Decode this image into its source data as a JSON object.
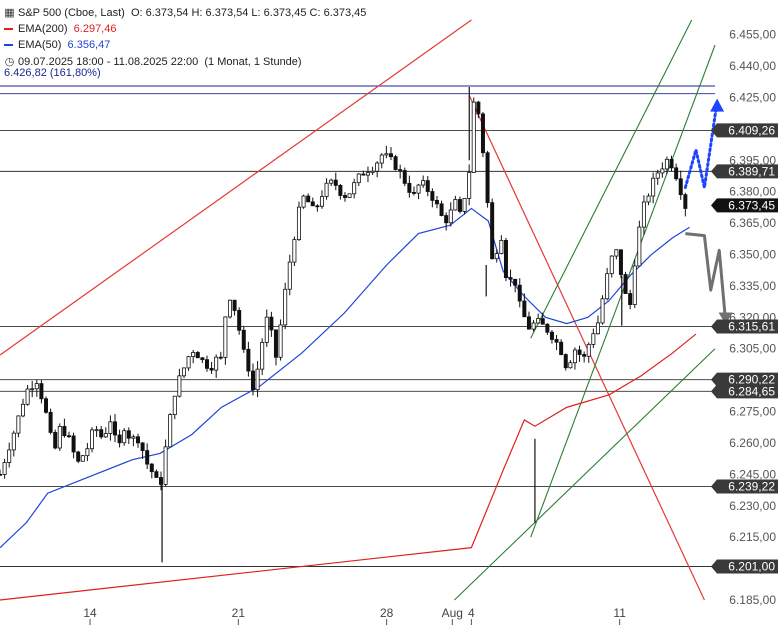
{
  "header": {
    "title": "S&P 500 (Cboe, Last)",
    "ohlc": "O: 6.373,54  H: 6.373,54  L: 6.373,45  C: 6.373,45",
    "ema200_label": "EMA(200)",
    "ema200_value": "6.297,46",
    "ema50_label": "EMA(50)",
    "ema50_value": "6.356,47",
    "range": "09.07.2025 18:00 - 11.08.2025 22:00",
    "interval": "(1 Monat, 1 Stunde)",
    "fib_label": "6.426,82 (161,80%)"
  },
  "colors": {
    "up": "#222222",
    "ema200": "#e02020",
    "ema50": "#1f44d6",
    "fib": "#1a2a8c",
    "channel": "#2e7d32",
    "red_line": "#e53935",
    "dotted": "#1f44ff",
    "grey_arrow": "#707070"
  },
  "chart_data": {
    "type": "candlestick",
    "title": "S&P 500 (Cboe, Last)",
    "ylim": [
      6185,
      6462
    ],
    "y_ticks": [
      "6.455,00",
      "6.440,00",
      "6.425,00",
      "6.410,00",
      "6.395,00",
      "6.380,00",
      "6.365,00",
      "6.350,00",
      "6.335,00",
      "6.320,00",
      "6.305,00",
      "6.290,00",
      "6.275,00",
      "6.260,00",
      "6.245,00",
      "6.230,00",
      "6.215,00",
      "6.200,00",
      "6.185,00"
    ],
    "y_tick_values": [
      6455,
      6440,
      6425,
      6410,
      6395,
      6380,
      6365,
      6350,
      6335,
      6320,
      6305,
      6290,
      6275,
      6260,
      6245,
      6230,
      6215,
      6200,
      6185
    ],
    "x_ticks": [
      "14",
      "21",
      "28",
      "Aug",
      "4",
      "11"
    ],
    "x_tick_values": [
      14,
      21,
      28,
      31.1,
      32,
      39
    ],
    "xlim": [
      9.75,
      43.5
    ],
    "levels": [
      {
        "label": "6.426,82",
        "value": 6426.82,
        "color": "#1a2a8c"
      },
      {
        "label": "6.409,26",
        "value": 6409.26,
        "color": "#333333"
      },
      {
        "label": "6.389,71",
        "value": 6389.71,
        "color": "#333333"
      },
      {
        "label": "6.373,45",
        "value": 6373.45,
        "color": "#111111"
      },
      {
        "label": "6.315,61",
        "value": 6315.61,
        "color": "#333333"
      },
      {
        "label": "6.290,22",
        "value": 6290.22,
        "color": "#333333"
      },
      {
        "label": "6.284,65",
        "value": 6284.65,
        "color": "#333333"
      },
      {
        "label": "6.239,22",
        "value": 6239.22,
        "color": "#333333"
      },
      {
        "label": "6.201,00",
        "value": 6201.0,
        "color": "#333333"
      }
    ],
    "price_path": [
      [
        9.75,
        6245
      ],
      [
        10.4,
        6265
      ],
      [
        11.0,
        6285
      ],
      [
        11.5,
        6290
      ],
      [
        11.9,
        6275
      ],
      [
        12.3,
        6255
      ],
      [
        12.6,
        6268
      ],
      [
        13.0,
        6262
      ],
      [
        13.4,
        6250
      ],
      [
        13.9,
        6258
      ],
      [
        14.2,
        6268
      ],
      [
        14.6,
        6262
      ],
      [
        15.0,
        6272
      ],
      [
        15.3,
        6255
      ],
      [
        15.6,
        6268
      ],
      [
        15.9,
        6262
      ],
      [
        16.3,
        6262
      ],
      [
        16.7,
        6250
      ],
      [
        17.0,
        6245
      ],
      [
        17.3,
        6238
      ],
      [
        17.6,
        6260
      ],
      [
        17.9,
        6280
      ],
      [
        18.1,
        6288
      ],
      [
        18.4,
        6295
      ],
      [
        18.8,
        6305
      ],
      [
        19.1,
        6302
      ],
      [
        19.4,
        6298
      ],
      [
        19.7,
        6296
      ],
      [
        19.9,
        6300
      ],
      [
        20.2,
        6300
      ],
      [
        20.4,
        6322
      ],
      [
        20.6,
        6330
      ],
      [
        20.9,
        6322
      ],
      [
        21.2,
        6305
      ],
      [
        21.5,
        6295
      ],
      [
        21.7,
        6285
      ],
      [
        22.0,
        6300
      ],
      [
        22.3,
        6320
      ],
      [
        22.5,
        6315
      ],
      [
        22.8,
        6300
      ],
      [
        23.1,
        6325
      ],
      [
        23.4,
        6345
      ],
      [
        23.7,
        6362
      ],
      [
        24.0,
        6378
      ],
      [
        24.3,
        6375
      ],
      [
        24.6,
        6370
      ],
      [
        24.9,
        6378
      ],
      [
        25.2,
        6383
      ],
      [
        25.5,
        6385
      ],
      [
        25.8,
        6380
      ],
      [
        26.0,
        6378
      ],
      [
        26.3,
        6380
      ],
      [
        26.6,
        6386
      ],
      [
        27.0,
        6390
      ],
      [
        27.4,
        6392
      ],
      [
        27.8,
        6398
      ],
      [
        28.2,
        6395
      ],
      [
        28.6,
        6390
      ],
      [
        29.0,
        6382
      ],
      [
        29.3,
        6378
      ],
      [
        29.6,
        6385
      ],
      [
        30.0,
        6380
      ],
      [
        30.3,
        6375
      ],
      [
        30.6,
        6368
      ],
      [
        30.9,
        6366
      ],
      [
        31.2,
        6376
      ],
      [
        31.5,
        6368
      ],
      [
        31.9,
        6390
      ],
      [
        32.0,
        6415
      ],
      [
        32.2,
        6428
      ],
      [
        32.6,
        6395
      ],
      [
        33.0,
        6345
      ],
      [
        33.4,
        6360
      ],
      [
        33.7,
        6335
      ],
      [
        34.0,
        6340
      ],
      [
        34.3,
        6325
      ],
      [
        34.7,
        6315
      ],
      [
        35.1,
        6318
      ],
      [
        35.5,
        6315
      ],
      [
        35.9,
        6310
      ],
      [
        36.2,
        6305
      ],
      [
        36.5,
        6296
      ],
      [
        36.9,
        6305
      ],
      [
        37.3,
        6300
      ],
      [
        37.7,
        6312
      ],
      [
        38.0,
        6318
      ],
      [
        38.3,
        6335
      ],
      [
        38.6,
        6348
      ],
      [
        38.9,
        6352
      ],
      [
        39.2,
        6332
      ],
      [
        39.5,
        6326
      ],
      [
        39.8,
        6355
      ],
      [
        40.1,
        6372
      ],
      [
        40.4,
        6380
      ],
      [
        40.7,
        6388
      ],
      [
        41.0,
        6392
      ],
      [
        41.3,
        6396
      ],
      [
        41.6,
        6390
      ],
      [
        41.9,
        6380
      ],
      [
        42.1,
        6373
      ]
    ],
    "ema200": [
      [
        9.75,
        6185
      ],
      [
        32,
        6210
      ],
      [
        33.5,
        6247
      ],
      [
        34.5,
        6271
      ],
      [
        35.0,
        6268
      ],
      [
        36.5,
        6277
      ],
      [
        38.5,
        6283
      ],
      [
        40.0,
        6292
      ],
      [
        41.5,
        6303
      ],
      [
        42.6,
        6312
      ]
    ],
    "ema50": [
      [
        9.75,
        6210
      ],
      [
        11,
        6222
      ],
      [
        12,
        6236
      ],
      [
        14,
        6244
      ],
      [
        16,
        6252
      ],
      [
        17.3,
        6255
      ],
      [
        18.8,
        6264
      ],
      [
        20.2,
        6277
      ],
      [
        22,
        6287
      ],
      [
        24,
        6303
      ],
      [
        26,
        6322
      ],
      [
        28,
        6345
      ],
      [
        29.5,
        6360
      ],
      [
        31,
        6364
      ],
      [
        32,
        6372
      ],
      [
        32.8,
        6366
      ],
      [
        33.5,
        6342
      ],
      [
        34.5,
        6330
      ],
      [
        35.5,
        6320
      ],
      [
        36.5,
        6317
      ],
      [
        37.5,
        6320
      ],
      [
        38.5,
        6328
      ],
      [
        39.5,
        6340
      ],
      [
        40.5,
        6350
      ],
      [
        41.5,
        6358
      ],
      [
        42.3,
        6363
      ]
    ],
    "annotations": {
      "red_upper_line": [
        [
          9.75,
          6302
        ],
        [
          32,
          6462
        ]
      ],
      "red_down_line": [
        [
          31.9,
          6426
        ],
        [
          43.0,
          6185
        ]
      ],
      "green_lower_channel": [
        [
          31.2,
          6185
        ],
        [
          43.5,
          6305
        ]
      ],
      "green_mid_channel": [
        [
          34.8,
          6215
        ],
        [
          43.5,
          6450
        ]
      ],
      "green_upper_channel": [
        [
          34.8,
          6310
        ],
        [
          42.4,
          6462
        ]
      ],
      "blue_dotted_arrow": [
        [
          42.1,
          6382
        ],
        [
          42.6,
          6400
        ],
        [
          43.0,
          6382
        ],
        [
          43.6,
          6423
        ]
      ],
      "grey_arrow": [
        [
          42.1,
          6360
        ],
        [
          43.0,
          6359
        ],
        [
          43.3,
          6333
        ],
        [
          43.7,
          6352
        ],
        [
          44.0,
          6318
        ]
      ]
    }
  }
}
